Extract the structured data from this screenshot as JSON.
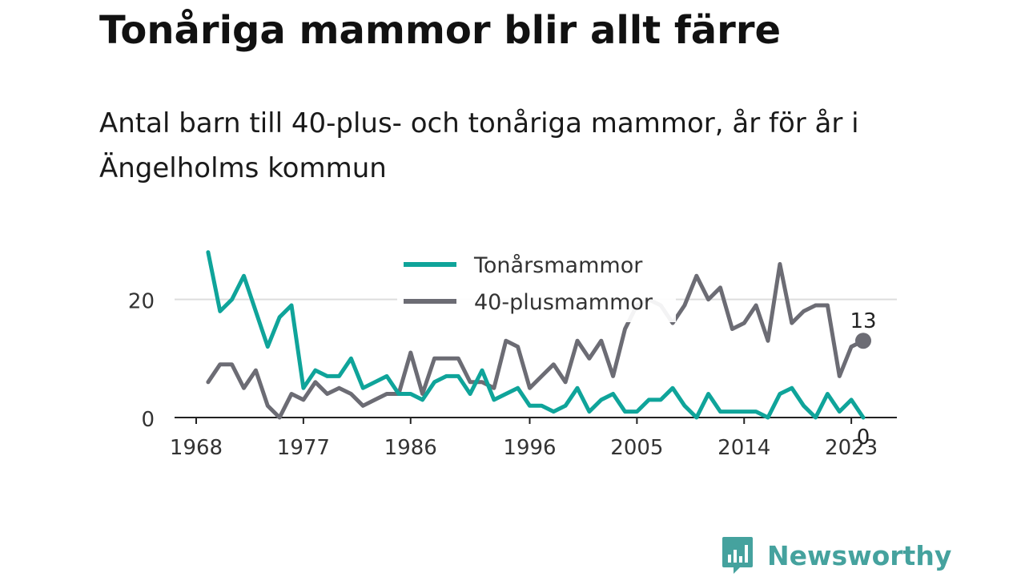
{
  "title": "Tonåriga mammor blir allt färre",
  "subtitle": "Antal barn till 40-plus- och tonåriga mammor, år för år i Ängelholms kommun",
  "brand": {
    "name": "Newsworthy",
    "color": "#45a29e",
    "icon": "newsworthy-logo-icon"
  },
  "chart_data": {
    "type": "line",
    "title": "",
    "xlabel": "",
    "ylabel": "",
    "xlim": [
      1968,
      2024
    ],
    "ylim": [
      0,
      30
    ],
    "grid": true,
    "legend": "top-center",
    "x_ticks": [
      "1968",
      "1977",
      "1986",
      "1996",
      "2005",
      "2014",
      "2023"
    ],
    "y_ticks": [
      "0",
      "20"
    ],
    "x": [
      1969,
      1970,
      1971,
      1972,
      1973,
      1974,
      1975,
      1976,
      1977,
      1978,
      1979,
      1980,
      1981,
      1982,
      1983,
      1984,
      1985,
      1986,
      1987,
      1988,
      1989,
      1990,
      1991,
      1992,
      1993,
      1994,
      1995,
      1996,
      1997,
      1998,
      1999,
      2000,
      2001,
      2002,
      2003,
      2004,
      2005,
      2006,
      2007,
      2008,
      2009,
      2010,
      2011,
      2012,
      2013,
      2014,
      2015,
      2016,
      2017,
      2018,
      2019,
      2020,
      2021,
      2022,
      2023,
      2024
    ],
    "series": [
      {
        "name": "Tonårsmammor",
        "color": "#0fa49a",
        "values": [
          28,
          18,
          20,
          24,
          18,
          12,
          17,
          19,
          5,
          8,
          7,
          7,
          10,
          5,
          6,
          7,
          4,
          4,
          3,
          6,
          7,
          7,
          4,
          8,
          3,
          4,
          5,
          2,
          2,
          1,
          2,
          5,
          1,
          3,
          4,
          1,
          1,
          3,
          3,
          5,
          2,
          0,
          4,
          1,
          1,
          1,
          1,
          0,
          4,
          5,
          2,
          0,
          4,
          1,
          3,
          0
        ],
        "end_label": "0"
      },
      {
        "name": "40-plusmammor",
        "color": "#6c6c74",
        "values": [
          6,
          9,
          9,
          5,
          8,
          2,
          0,
          4,
          3,
          6,
          4,
          5,
          4,
          2,
          3,
          4,
          4,
          11,
          4,
          10,
          10,
          10,
          6,
          6,
          5,
          13,
          12,
          5,
          7,
          9,
          6,
          13,
          10,
          13,
          7,
          15,
          19,
          20,
          19,
          16,
          19,
          24,
          20,
          22,
          15,
          16,
          19,
          13,
          26,
          16,
          18,
          19,
          19,
          7,
          12,
          13
        ],
        "end_label": "13"
      }
    ]
  }
}
